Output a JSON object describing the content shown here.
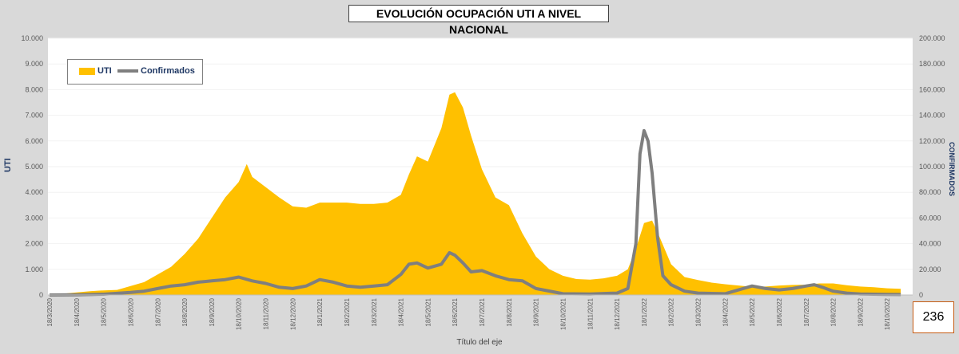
{
  "chart_data": {
    "type": "area",
    "title": "EVOLUCIÓN  OCUPACIÓN UTI A NIVEL NACIONAL",
    "xlabel": "Título del eje",
    "ylabel_left": "UTI",
    "ylabel_right": "CONFIRMADOS",
    "ylim_left": [
      0,
      10000
    ],
    "ylim_right": [
      0,
      200000
    ],
    "legend_position": "top-left",
    "left_tick_labels": [
      "0",
      "1.000",
      "2.000",
      "3.000",
      "4.000",
      "5.000",
      "6.000",
      "7.000",
      "8.000",
      "9.000",
      "10.000"
    ],
    "right_tick_labels": [
      "0",
      "20.000",
      "40.000",
      "60.000",
      "80.000",
      "100.000",
      "120.000",
      "140.000",
      "160.000",
      "180.000",
      "200.000"
    ],
    "x_tick_labels": [
      "18/3/2020",
      "18/4/2020",
      "18/5/2020",
      "18/6/2020",
      "18/7/2020",
      "18/8/2020",
      "18/9/2020",
      "18/10/2020",
      "18/11/2020",
      "18/12/2020",
      "18/1/2021",
      "18/2/2021",
      "18/3/2021",
      "18/4/2021",
      "18/5/2021",
      "18/6/2021",
      "18/7/2021",
      "18/8/2021",
      "18/9/2021",
      "18/10/2021",
      "18/11/2021",
      "18/12/2021",
      "18/1/2022",
      "18/2/2022",
      "18/3/2022",
      "18/4/2022",
      "18/5/2022",
      "18/6/2022",
      "18/7/2022",
      "18/8/2022",
      "18/9/2022",
      "18/10/2022"
    ],
    "series": [
      {
        "name": "UTI",
        "axis": "left",
        "color": "#ffc000",
        "x_month_index": [
          0,
          0.5,
          1,
          1.5,
          2,
          2.5,
          3,
          3.5,
          4,
          4.5,
          5,
          5.5,
          6,
          6.5,
          7,
          7.3,
          7.5,
          8,
          8.5,
          9,
          9.5,
          10,
          10.5,
          11,
          11.5,
          12,
          12.5,
          13,
          13.3,
          13.6,
          14,
          14.5,
          14.8,
          15,
          15.3,
          15.6,
          16,
          16.5,
          17,
          17.5,
          18,
          18.5,
          19,
          19.5,
          20,
          20.5,
          21,
          21.4,
          21.7,
          22,
          22.3,
          22.6,
          23,
          23.5,
          24,
          24.5,
          25,
          25.5,
          26,
          26.5,
          27,
          27.5,
          28,
          28.5,
          29,
          29.5,
          30,
          30.5,
          31,
          31.5
        ],
        "values": [
          0,
          50,
          100,
          150,
          180,
          200,
          350,
          500,
          800,
          1100,
          1600,
          2200,
          3000,
          3800,
          4400,
          5100,
          4600,
          4200,
          3800,
          3450,
          3400,
          3600,
          3600,
          3600,
          3550,
          3550,
          3600,
          3900,
          4700,
          5400,
          5200,
          6500,
          7800,
          7900,
          7300,
          6200,
          4900,
          3800,
          3500,
          2400,
          1500,
          1000,
          750,
          620,
          600,
          650,
          750,
          1000,
          1800,
          2800,
          2900,
          2200,
          1200,
          700,
          580,
          480,
          420,
          370,
          320,
          330,
          370,
          390,
          400,
          450,
          450,
          380,
          330,
          300,
          260,
          240
        ]
      },
      {
        "name": "Confirmados",
        "axis": "right",
        "color": "#7f7f7f",
        "x_month_index": [
          0,
          1,
          2,
          3,
          3.5,
          4,
          4.5,
          5,
          5.5,
          6,
          6.5,
          7,
          7.5,
          8,
          8.5,
          9,
          9.5,
          10,
          10.5,
          11,
          11.5,
          12,
          12.5,
          13,
          13.3,
          13.6,
          14,
          14.5,
          14.8,
          15,
          15.3,
          15.6,
          16,
          16.5,
          17,
          17.5,
          18,
          19,
          20,
          21,
          21.4,
          21.7,
          21.85,
          22,
          22.15,
          22.3,
          22.5,
          22.7,
          23,
          23.5,
          24,
          25,
          25.5,
          26,
          26.5,
          27,
          27.5,
          28,
          28.3,
          28.6,
          29,
          29.5,
          30,
          31,
          31.5
        ],
        "values": [
          0,
          200,
          600,
          2000,
          3000,
          5000,
          7000,
          8000,
          10000,
          11000,
          12000,
          14000,
          11000,
          9000,
          6000,
          5000,
          7000,
          12000,
          10000,
          7000,
          6000,
          7000,
          8000,
          16000,
          24000,
          25000,
          21000,
          24000,
          33000,
          31000,
          25000,
          18000,
          19000,
          15000,
          12000,
          11000,
          5000,
          1000,
          800,
          1500,
          5000,
          40000,
          110000,
          128000,
          120000,
          95000,
          45000,
          15000,
          8000,
          3000,
          1500,
          1000,
          4000,
          7000,
          5000,
          4000,
          5000,
          7000,
          8000,
          6000,
          3000,
          1500,
          800,
          500,
          400
        ]
      }
    ]
  },
  "counter_value": "236"
}
